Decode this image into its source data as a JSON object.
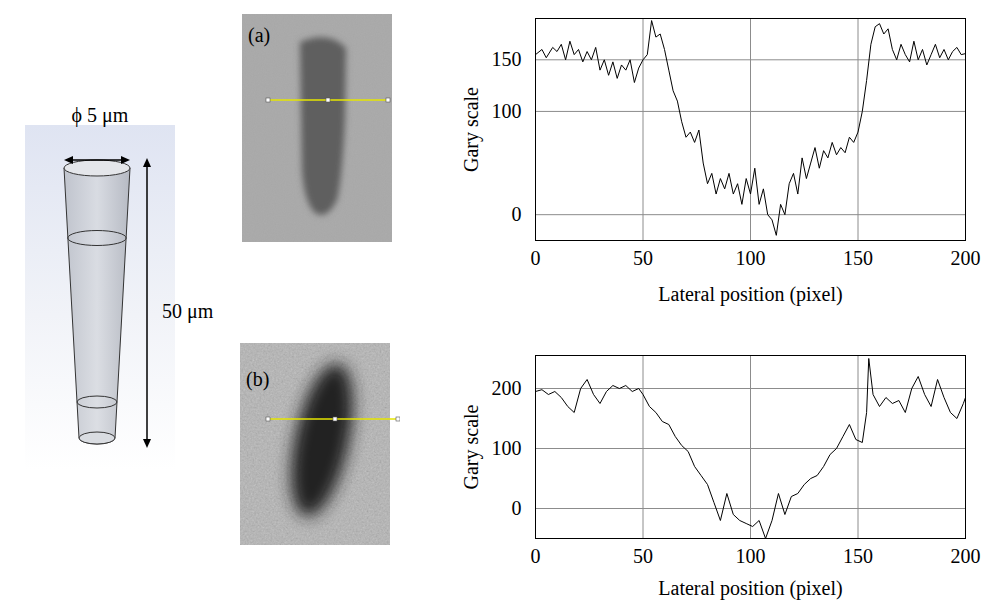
{
  "diagram": {
    "diameter": "ϕ 5 μm",
    "length": "50 μm"
  },
  "images": [
    {
      "label": "(a)"
    },
    {
      "label": "(b)"
    }
  ],
  "chart_data": [
    {
      "type": "line",
      "x_label": "Lateral position (pixel)",
      "y_label": "Gary scale",
      "color": "#000000",
      "grid": true,
      "xlim": [
        0,
        200
      ],
      "xticks": [
        0,
        50,
        100,
        150,
        200
      ],
      "ylim": [
        -25,
        190
      ],
      "yticks": [
        0,
        100,
        150
      ],
      "x": [
        0,
        3,
        5,
        8,
        10,
        12,
        14,
        16,
        18,
        20,
        22,
        24,
        26,
        28,
        30,
        32,
        34,
        36,
        38,
        40,
        42,
        44,
        46,
        48,
        50,
        52,
        54,
        56,
        58,
        60,
        62,
        64,
        66,
        68,
        70,
        72,
        74,
        76,
        78,
        80,
        82,
        84,
        86,
        88,
        90,
        92,
        94,
        96,
        98,
        100,
        102,
        104,
        106,
        108,
        110,
        112,
        114,
        116,
        118,
        120,
        122,
        124,
        126,
        128,
        130,
        132,
        134,
        136,
        138,
        140,
        142,
        144,
        146,
        148,
        150,
        152,
        154,
        156,
        158,
        160,
        162,
        164,
        166,
        168,
        170,
        172,
        174,
        176,
        178,
        180,
        182,
        184,
        186,
        188,
        190,
        192,
        194,
        196,
        198,
        200
      ],
      "values": [
        155,
        160,
        152,
        162,
        158,
        165,
        150,
        168,
        155,
        160,
        148,
        158,
        150,
        162,
        140,
        150,
        135,
        148,
        132,
        145,
        140,
        150,
        128,
        142,
        150,
        155,
        188,
        172,
        175,
        160,
        140,
        120,
        110,
        90,
        75,
        80,
        70,
        82,
        50,
        30,
        40,
        20,
        35,
        25,
        40,
        20,
        30,
        10,
        35,
        20,
        45,
        10,
        25,
        0,
        -5,
        -20,
        10,
        0,
        30,
        40,
        20,
        55,
        35,
        50,
        65,
        45,
        62,
        55,
        70,
        58,
        65,
        60,
        75,
        70,
        80,
        100,
        130,
        165,
        182,
        185,
        175,
        180,
        160,
        150,
        165,
        155,
        148,
        168,
        150,
        160,
        145,
        155,
        165,
        152,
        160,
        150,
        158,
        162,
        155,
        156
      ]
    },
    {
      "type": "line",
      "x_label": "Lateral position (pixel)",
      "y_label": "Gary scale",
      "color": "#000000",
      "grid": true,
      "xlim": [
        0,
        200
      ],
      "xticks": [
        0,
        50,
        100,
        150,
        200
      ],
      "ylim": [
        -50,
        255
      ],
      "yticks": [
        0,
        100,
        200
      ],
      "x": [
        0,
        3,
        6,
        9,
        12,
        15,
        18,
        21,
        24,
        27,
        30,
        33,
        36,
        39,
        42,
        45,
        48,
        50,
        53,
        56,
        59,
        62,
        65,
        68,
        71,
        74,
        77,
        80,
        83,
        86,
        89,
        92,
        95,
        98,
        101,
        104,
        107,
        110,
        113,
        116,
        119,
        122,
        125,
        128,
        131,
        134,
        137,
        140,
        143,
        146,
        149,
        152,
        154,
        155,
        157,
        160,
        163,
        166,
        169,
        172,
        175,
        178,
        181,
        184,
        187,
        190,
        193,
        196,
        199,
        200
      ],
      "values": [
        195,
        198,
        190,
        195,
        185,
        170,
        160,
        200,
        215,
        190,
        175,
        195,
        205,
        200,
        205,
        195,
        200,
        190,
        170,
        160,
        145,
        140,
        120,
        105,
        95,
        70,
        55,
        40,
        10,
        -20,
        25,
        -10,
        -20,
        -25,
        -30,
        -20,
        -50,
        -20,
        25,
        -10,
        20,
        25,
        40,
        50,
        55,
        70,
        90,
        100,
        120,
        140,
        115,
        110,
        160,
        250,
        190,
        170,
        185,
        175,
        180,
        160,
        200,
        220,
        190,
        170,
        215,
        185,
        160,
        150,
        175,
        185
      ]
    }
  ]
}
